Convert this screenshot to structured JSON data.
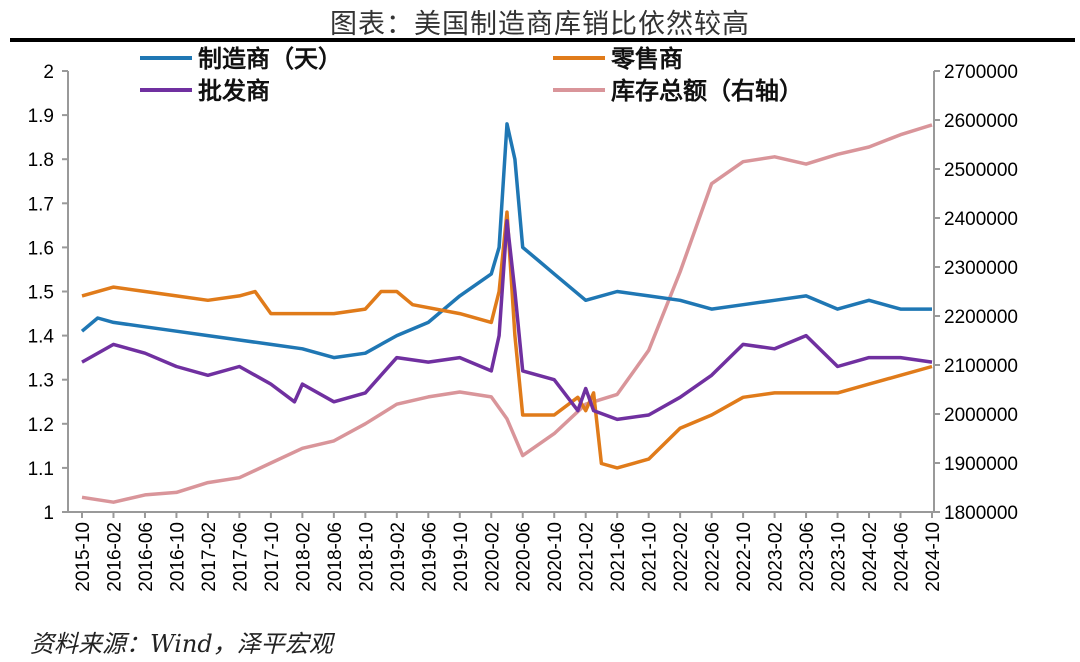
{
  "title": "图表：美国制造商库销比依然较高",
  "source": "资料来源：Wind，泽平宏观",
  "chart_data": {
    "type": "line",
    "title": "图表：美国制造商库销比依然较高",
    "x_ticks": [
      "2015-10",
      "2016-02",
      "2016-06",
      "2016-10",
      "2017-02",
      "2017-06",
      "2017-10",
      "2018-02",
      "2018-06",
      "2018-10",
      "2019-02",
      "2019-06",
      "2019-10",
      "2020-02",
      "2020-06",
      "2020-10",
      "2021-02",
      "2021-06",
      "2021-10",
      "2022-02",
      "2022-06",
      "2022-10",
      "2023-02",
      "2023-06",
      "2023-10",
      "2024-02",
      "2024-06",
      "2024-10"
    ],
    "x_range": [
      "2015-10",
      "2024-10"
    ],
    "y_left": {
      "range": [
        1,
        2
      ],
      "ticks": [
        "1",
        "1.1",
        "1.2",
        "1.3",
        "1.4",
        "1.5",
        "1.6",
        "1.7",
        "1.8",
        "1.9",
        "2"
      ]
    },
    "y_right": {
      "range": [
        1800000,
        2700000
      ],
      "ticks": [
        "1800000",
        "1900000",
        "2000000",
        "2100000",
        "2200000",
        "2300000",
        "2400000",
        "2500000",
        "2600000",
        "2700000"
      ]
    },
    "grid": false,
    "legend_placement": "top",
    "series": [
      {
        "name": "制造商（天）",
        "axis": "left",
        "color": "#1f77b4",
        "points": [
          [
            "2015-10",
            1.41
          ],
          [
            "2015-12",
            1.44
          ],
          [
            "2016-02",
            1.43
          ],
          [
            "2016-06",
            1.42
          ],
          [
            "2016-10",
            1.41
          ],
          [
            "2017-02",
            1.4
          ],
          [
            "2017-06",
            1.39
          ],
          [
            "2017-10",
            1.38
          ],
          [
            "2018-02",
            1.37
          ],
          [
            "2018-06",
            1.35
          ],
          [
            "2018-10",
            1.36
          ],
          [
            "2019-02",
            1.4
          ],
          [
            "2019-06",
            1.43
          ],
          [
            "2019-10",
            1.49
          ],
          [
            "2020-02",
            1.54
          ],
          [
            "2020-03",
            1.6
          ],
          [
            "2020-04",
            1.88
          ],
          [
            "2020-05",
            1.8
          ],
          [
            "2020-06",
            1.6
          ],
          [
            "2020-08",
            1.57
          ],
          [
            "2020-10",
            1.54
          ],
          [
            "2021-02",
            1.48
          ],
          [
            "2021-06",
            1.5
          ],
          [
            "2021-10",
            1.49
          ],
          [
            "2022-02",
            1.48
          ],
          [
            "2022-06",
            1.46
          ],
          [
            "2022-10",
            1.47
          ],
          [
            "2023-02",
            1.48
          ],
          [
            "2023-06",
            1.49
          ],
          [
            "2023-10",
            1.46
          ],
          [
            "2024-02",
            1.48
          ],
          [
            "2024-06",
            1.46
          ],
          [
            "2024-10",
            1.46
          ]
        ]
      },
      {
        "name": "零售商",
        "axis": "left",
        "color": "#e07b1a",
        "points": [
          [
            "2015-10",
            1.49
          ],
          [
            "2016-02",
            1.51
          ],
          [
            "2016-06",
            1.5
          ],
          [
            "2016-10",
            1.49
          ],
          [
            "2017-02",
            1.48
          ],
          [
            "2017-06",
            1.49
          ],
          [
            "2017-08",
            1.5
          ],
          [
            "2017-10",
            1.45
          ],
          [
            "2018-02",
            1.45
          ],
          [
            "2018-06",
            1.45
          ],
          [
            "2018-10",
            1.46
          ],
          [
            "2018-12",
            1.5
          ],
          [
            "2019-02",
            1.5
          ],
          [
            "2019-04",
            1.47
          ],
          [
            "2019-10",
            1.45
          ],
          [
            "2020-02",
            1.43
          ],
          [
            "2020-03",
            1.5
          ],
          [
            "2020-04",
            1.68
          ],
          [
            "2020-05",
            1.4
          ],
          [
            "2020-06",
            1.22
          ],
          [
            "2020-10",
            1.22
          ],
          [
            "2021-01",
            1.26
          ],
          [
            "2021-02",
            1.23
          ],
          [
            "2021-03",
            1.27
          ],
          [
            "2021-04",
            1.11
          ],
          [
            "2021-06",
            1.1
          ],
          [
            "2021-10",
            1.12
          ],
          [
            "2022-02",
            1.19
          ],
          [
            "2022-06",
            1.22
          ],
          [
            "2022-10",
            1.26
          ],
          [
            "2023-02",
            1.27
          ],
          [
            "2023-06",
            1.27
          ],
          [
            "2023-10",
            1.27
          ],
          [
            "2024-02",
            1.29
          ],
          [
            "2024-06",
            1.31
          ],
          [
            "2024-10",
            1.33
          ]
        ]
      },
      {
        "name": "批发商",
        "axis": "left",
        "color": "#7030a0",
        "points": [
          [
            "2015-10",
            1.34
          ],
          [
            "2016-02",
            1.38
          ],
          [
            "2016-06",
            1.36
          ],
          [
            "2016-10",
            1.33
          ],
          [
            "2017-02",
            1.31
          ],
          [
            "2017-06",
            1.33
          ],
          [
            "2017-10",
            1.29
          ],
          [
            "2018-01",
            1.25
          ],
          [
            "2018-02",
            1.29
          ],
          [
            "2018-06",
            1.25
          ],
          [
            "2018-10",
            1.27
          ],
          [
            "2019-02",
            1.35
          ],
          [
            "2019-06",
            1.34
          ],
          [
            "2019-10",
            1.35
          ],
          [
            "2020-02",
            1.32
          ],
          [
            "2020-03",
            1.4
          ],
          [
            "2020-04",
            1.66
          ],
          [
            "2020-05",
            1.5
          ],
          [
            "2020-06",
            1.32
          ],
          [
            "2020-10",
            1.3
          ],
          [
            "2021-01",
            1.23
          ],
          [
            "2021-02",
            1.28
          ],
          [
            "2021-03",
            1.23
          ],
          [
            "2021-06",
            1.21
          ],
          [
            "2021-10",
            1.22
          ],
          [
            "2022-02",
            1.26
          ],
          [
            "2022-06",
            1.31
          ],
          [
            "2022-10",
            1.38
          ],
          [
            "2023-02",
            1.37
          ],
          [
            "2023-06",
            1.4
          ],
          [
            "2023-10",
            1.33
          ],
          [
            "2024-02",
            1.35
          ],
          [
            "2024-06",
            1.35
          ],
          [
            "2024-10",
            1.34
          ]
        ]
      },
      {
        "name": "库存总额（右轴）",
        "axis": "right",
        "color": "#d9959a",
        "points": [
          [
            "2015-10",
            1830000
          ],
          [
            "2016-02",
            1820000
          ],
          [
            "2016-06",
            1835000
          ],
          [
            "2016-10",
            1840000
          ],
          [
            "2017-02",
            1860000
          ],
          [
            "2017-06",
            1870000
          ],
          [
            "2017-10",
            1900000
          ],
          [
            "2018-02",
            1930000
          ],
          [
            "2018-06",
            1945000
          ],
          [
            "2018-10",
            1980000
          ],
          [
            "2019-02",
            2020000
          ],
          [
            "2019-06",
            2035000
          ],
          [
            "2019-10",
            2045000
          ],
          [
            "2020-02",
            2035000
          ],
          [
            "2020-04",
            1990000
          ],
          [
            "2020-06",
            1915000
          ],
          [
            "2020-10",
            1960000
          ],
          [
            "2021-02",
            2020000
          ],
          [
            "2021-06",
            2040000
          ],
          [
            "2021-10",
            2130000
          ],
          [
            "2022-02",
            2290000
          ],
          [
            "2022-06",
            2470000
          ],
          [
            "2022-10",
            2515000
          ],
          [
            "2023-02",
            2525000
          ],
          [
            "2023-06",
            2510000
          ],
          [
            "2023-10",
            2530000
          ],
          [
            "2024-02",
            2545000
          ],
          [
            "2024-06",
            2570000
          ],
          [
            "2024-10",
            2590000
          ]
        ]
      }
    ]
  }
}
